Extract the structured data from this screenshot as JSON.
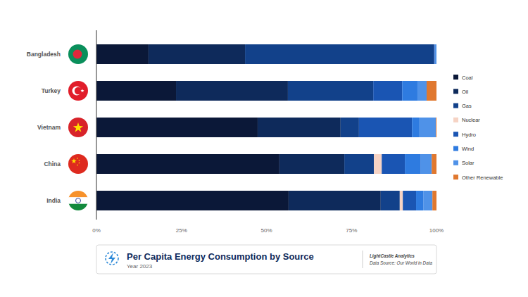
{
  "chart_data": {
    "type": "bar",
    "orientation": "horizontal",
    "stacked": true,
    "title": "Per Capita Energy Consumption by Source",
    "subtitle": "Year 2023",
    "annotations": [
      "LightCastle Analytics",
      "Data Source: Our World in Data"
    ],
    "categories": [
      "Bangladesh",
      "Turkey",
      "Vietnam",
      "China",
      "India"
    ],
    "series": [
      {
        "name": "Coal",
        "color": "#0b1838",
        "values": [
          15.3,
          23.4,
          47.4,
          53.8,
          56.5
        ]
      },
      {
        "name": "Oil",
        "color": "#0e2a5b",
        "values": [
          28.4,
          32.9,
          24.4,
          19.1,
          27.1
        ]
      },
      {
        "name": "Gas",
        "color": "#12418a",
        "values": [
          55.5,
          25.1,
          5.4,
          8.7,
          5.6
        ]
      },
      {
        "name": "Nuclear",
        "color": "#f6d3c4",
        "values": [
          0,
          0,
          0,
          2.3,
          0.9
        ]
      },
      {
        "name": "Hydro",
        "color": "#1a55b3",
        "values": [
          0.3,
          8.5,
          15.6,
          6.8,
          3.9
        ]
      },
      {
        "name": "Wind",
        "color": "#2e7be0",
        "values": [
          0,
          4.5,
          2.2,
          4.7,
          2.1
        ]
      },
      {
        "name": "Solar",
        "color": "#4f92e8",
        "values": [
          0.5,
          2.7,
          4.8,
          3.2,
          2.7
        ]
      },
      {
        "name": "Other Renewable",
        "color": "#e0782f",
        "values": [
          0,
          2.9,
          0.2,
          1.4,
          1.2
        ]
      }
    ],
    "xlim": [
      0,
      100
    ],
    "xticks": [
      {
        "value": 0,
        "label": "0%"
      },
      {
        "value": 25,
        "label": "25%"
      },
      {
        "value": 50,
        "label": "50%"
      },
      {
        "value": 75,
        "label": "75%"
      },
      {
        "value": 100,
        "label": "100%"
      }
    ],
    "grid": false,
    "legend": "right"
  }
}
